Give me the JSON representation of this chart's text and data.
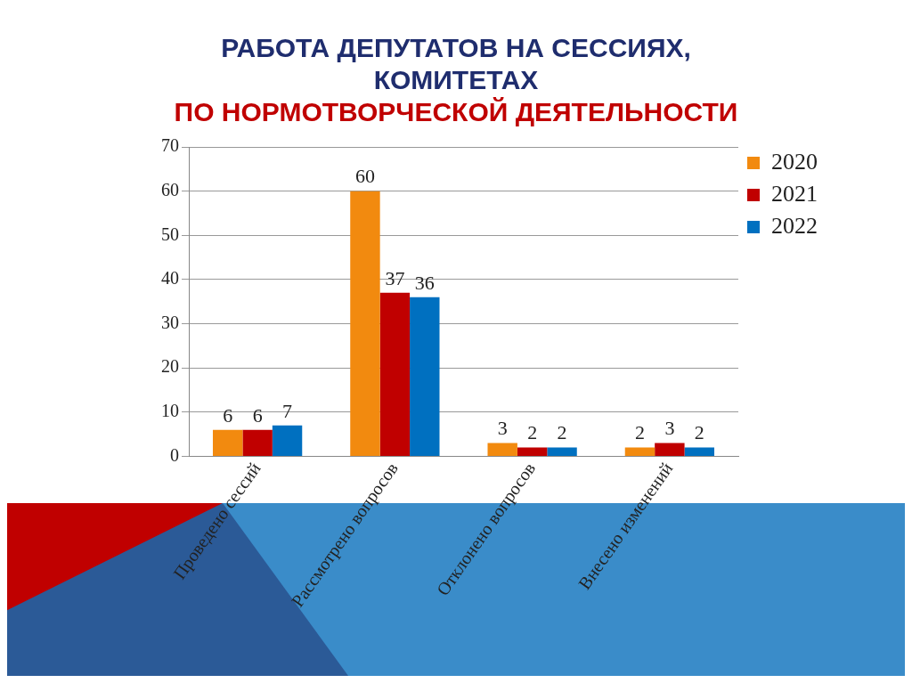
{
  "chart_data": {
    "type": "bar",
    "title": "РАБОТА  ДЕПУТАТОВ НА СЕССИЯХ, КОМИТЕТАХ",
    "subtitle": "ПО НОРМОТВОРЧЕСКОЙ ДЕЯТЕЛЬНОСТИ",
    "categories": [
      "Проведено сессий",
      "Рассмотрено вопросов",
      "Отклонено вопросов",
      "Внесено изменений"
    ],
    "series": [
      {
        "name": "2020",
        "color": "#f28a0f",
        "values": [
          6,
          60,
          3,
          2
        ]
      },
      {
        "name": "2021",
        "color": "#c00000",
        "values": [
          6,
          37,
          2,
          3
        ]
      },
      {
        "name": "2022",
        "color": "#0070c0",
        "values": [
          7,
          36,
          2,
          2
        ]
      }
    ],
    "ylim": [
      0,
      70
    ],
    "yticks": [
      0,
      10,
      20,
      30,
      40,
      50,
      60,
      70
    ],
    "grid": "y",
    "legend": "right",
    "data_labels": true
  }
}
